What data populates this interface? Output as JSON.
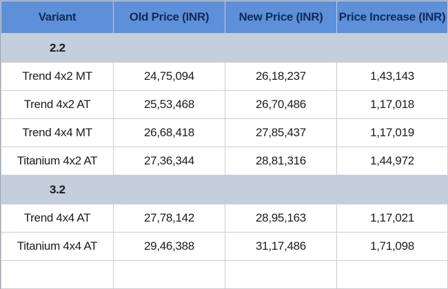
{
  "table": {
    "header": [
      "Variant",
      "Old Price (INR)",
      "New Price (INR)",
      "Price Increase  (INR)"
    ],
    "groups": [
      {
        "label": "2.2",
        "rows": [
          [
            "Trend 4x2 MT",
            "24,75,094",
            "26,18,237",
            "1,43,143"
          ],
          [
            "Trend 4x2 AT",
            "25,53,468",
            "26,70,486",
            "1,17,018"
          ],
          [
            "Trend 4x4 MT",
            "26,68,418",
            "27,85,437",
            "1,17,019"
          ],
          [
            "Titanium 4x2 AT",
            "27,36,344",
            "28,81,316",
            "1,44,972"
          ]
        ]
      },
      {
        "label": "3.2",
        "rows": [
          [
            "Trend 4x4 AT",
            "27,78,142",
            "28,95,163",
            "1,17,021"
          ],
          [
            "Titanium 4x4 AT",
            "29,46,388",
            "31,17,486",
            "1,71,098"
          ]
        ]
      }
    ]
  }
}
